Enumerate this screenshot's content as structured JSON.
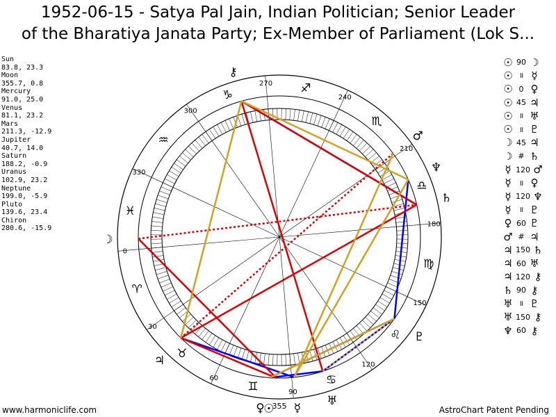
{
  "title": {
    "line1": "1952-06-15 - Satya Pal Jain, Indian Politician; Senior Leader",
    "line2": "of the Bharatiya Janata Party; Ex-Member of Parliament (Lok S..."
  },
  "planets": [
    {
      "name": "Sun",
      "coords": "83.8, 23.3",
      "glyph": "☉",
      "lon": 83.8,
      "color": "#000000",
      "label_lon": 81.5
    },
    {
      "name": "Moon",
      "coords": "355.7, 0.8",
      "glyph": "☽",
      "lon": 355.7,
      "color": "#000000",
      "label_lon": 355.7
    },
    {
      "name": "Mercury",
      "coords": "91.0, 25.0",
      "glyph": "☿",
      "lon": 91.0,
      "color": "#000000",
      "label_lon": 91.0
    },
    {
      "name": "Venus",
      "coords": "81.1, 23.2",
      "glyph": "♀",
      "lon": 81.1,
      "color": "#000000",
      "label_lon": 78.6
    },
    {
      "name": "Mars",
      "coords": "211.3, -12.9",
      "glyph": "♂",
      "lon": 211.3,
      "color": "#000000",
      "label_lon": 211.3
    },
    {
      "name": "Jupiter",
      "coords": "40.7, 14.0",
      "glyph": "♃",
      "lon": 40.7,
      "color": "#000000",
      "label_lon": 40.7
    },
    {
      "name": "Saturn",
      "coords": "188.2, -0.9",
      "glyph": "♄",
      "lon": 188.2,
      "color": "#000000",
      "label_lon": 188.2
    },
    {
      "name": "Uranus",
      "coords": "102.9, 23.2",
      "glyph": "♅",
      "lon": 102.9,
      "color": "#000000",
      "label_lon": 102.9
    },
    {
      "name": "Neptune",
      "coords": "199.0, -5.9",
      "glyph": "♆",
      "lon": 199.0,
      "color": "#000000",
      "label_lon": 199.0
    },
    {
      "name": "Pluto",
      "coords": "139.6, 23.4",
      "glyph": "♇",
      "lon": 139.6,
      "color": "#000000",
      "label_lon": 139.6
    },
    {
      "name": "Chiron",
      "coords": "280.6, -15.9",
      "glyph": "⚷",
      "lon": 280.6,
      "color": "#000000",
      "label_lon": 280.6
    }
  ],
  "zodiac_signs": [
    {
      "glyph": "♈",
      "lon": 15
    },
    {
      "glyph": "♉",
      "lon": 45
    },
    {
      "glyph": "♊",
      "lon": 75
    },
    {
      "glyph": "♋",
      "lon": 105
    },
    {
      "glyph": "♌",
      "lon": 135
    },
    {
      "glyph": "♍",
      "lon": 165
    },
    {
      "glyph": "♎",
      "lon": 195
    },
    {
      "glyph": "♏",
      "lon": 225
    },
    {
      "glyph": "♐",
      "lon": 255
    },
    {
      "glyph": "♑",
      "lon": 285
    },
    {
      "glyph": "♒",
      "lon": 315
    },
    {
      "glyph": "♓",
      "lon": 345
    }
  ],
  "degree_labels": [
    "0",
    "30",
    "60",
    "90",
    "120",
    "150",
    "180",
    "210",
    "240",
    "270",
    "300",
    "330"
  ],
  "ascendant_label": "355",
  "aspect_list": [
    {
      "p1": "☉",
      "aspect": "90",
      "p2": "☽"
    },
    {
      "p1": "☉",
      "aspect": "॥",
      "p2": "☿"
    },
    {
      "p1": "☉",
      "aspect": "0",
      "p2": "♀"
    },
    {
      "p1": "☉",
      "aspect": "45",
      "p2": "♃"
    },
    {
      "p1": "☉",
      "aspect": "॥",
      "p2": "♅"
    },
    {
      "p1": "☉",
      "aspect": "॥",
      "p2": "♇"
    },
    {
      "p1": "☽",
      "aspect": "45",
      "p2": "♃"
    },
    {
      "p1": "☽",
      "aspect": "#",
      "p2": "♄"
    },
    {
      "p1": "☿",
      "aspect": "120",
      "p2": "♂"
    },
    {
      "p1": "☿",
      "aspect": "॥",
      "p2": "♀"
    },
    {
      "p1": "☿",
      "aspect": "120",
      "p2": "♆"
    },
    {
      "p1": "☿",
      "aspect": "॥",
      "p2": "♇"
    },
    {
      "p1": "♀",
      "aspect": "60",
      "p2": "♇"
    },
    {
      "p1": "♂",
      "aspect": "#",
      "p2": "♃"
    },
    {
      "p1": "♃",
      "aspect": "150",
      "p2": "♄"
    },
    {
      "p1": "♃",
      "aspect": "60",
      "p2": "♅"
    },
    {
      "p1": "♃",
      "aspect": "120",
      "p2": "⚷"
    },
    {
      "p1": "♄",
      "aspect": "90",
      "p2": "⚷"
    },
    {
      "p1": "♅",
      "aspect": "॥",
      "p2": "♇"
    },
    {
      "p1": "♅",
      "aspect": "150",
      "p2": "⚷"
    },
    {
      "p1": "♆",
      "aspect": "60",
      "p2": "⚷"
    }
  ],
  "aspect_lines": [
    {
      "a": 3,
      "b": 7,
      "type": "blue",
      "color": "#0000ff"
    },
    {
      "a": 3,
      "b": 9,
      "type": "blue",
      "color": "#0000ff"
    },
    {
      "a": 7,
      "b": 9,
      "type": "blue",
      "color": "#0000ff"
    },
    {
      "a": 2,
      "b": 5,
      "type": "blue",
      "color": "#0000ff"
    },
    {
      "a": 10,
      "b": 6,
      "type": "blue",
      "color": "#0000ff"
    },
    {
      "a": 9,
      "b": 8,
      "type": "blue",
      "color": "#0000ff"
    },
    {
      "a": 0,
      "b": 1,
      "type": "red",
      "color": "#dd0000"
    },
    {
      "a": 0,
      "b": 5,
      "type": "red",
      "color": "#dd0000"
    },
    {
      "a": 7,
      "b": 10,
      "type": "red",
      "color": "#dd0000"
    },
    {
      "a": 5,
      "b": 6,
      "type": "red",
      "color": "#dd0000"
    },
    {
      "a": 6,
      "b": 10,
      "type": "red",
      "color": "#dd0000"
    },
    {
      "a": 1,
      "b": 6,
      "type": "red_dotted",
      "color": "#dd0000"
    },
    {
      "a": 4,
      "b": 5,
      "type": "red_dotted",
      "color": "#dd0000"
    },
    {
      "a": 2,
      "b": 4,
      "type": "gold",
      "color": "#d4a020"
    },
    {
      "a": 2,
      "b": 8,
      "type": "gold",
      "color": "#d4a020"
    },
    {
      "a": 3,
      "b": 9,
      "type": "gold",
      "color": "#d4a020"
    },
    {
      "a": 5,
      "b": 10,
      "type": "gold",
      "color": "#d4a020"
    },
    {
      "a": 7,
      "b": 9,
      "type": "gold_dotted",
      "color": "#d4a020"
    },
    {
      "a": 8,
      "b": 10,
      "type": "gold",
      "color": "#d4a020"
    }
  ],
  "footer": {
    "left": "www.harmoniclife.com",
    "right": "AstroChart Patent Pending"
  }
}
